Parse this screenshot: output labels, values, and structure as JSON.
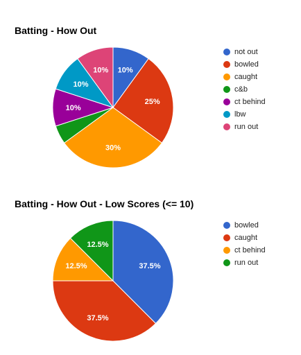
{
  "chart_data": [
    {
      "type": "pie",
      "title": "Batting - How Out",
      "legend_position": "right",
      "categories": [
        "not out",
        "bowled",
        "caught",
        "c&b",
        "ct behind",
        "lbw",
        "run out"
      ],
      "values": [
        10,
        25,
        30,
        5,
        10,
        10,
        10
      ],
      "labels": [
        "10%",
        "25%",
        "30%",
        "",
        "10%",
        "10%",
        "10%"
      ],
      "colors": [
        "#3366cc",
        "#dc3912",
        "#ff9900",
        "#109618",
        "#990099",
        "#0099c6",
        "#dd4477"
      ]
    },
    {
      "type": "pie",
      "title": "Batting - How Out - Low Scores (<= 10)",
      "legend_position": "right",
      "categories": [
        "bowled",
        "caught",
        "ct behind",
        "run out"
      ],
      "values": [
        37.5,
        37.5,
        12.5,
        12.5
      ],
      "labels": [
        "37.5%",
        "37.5%",
        "12.5%",
        "12.5%"
      ],
      "colors": [
        "#3366cc",
        "#dc3912",
        "#ff9900",
        "#109618"
      ]
    }
  ]
}
